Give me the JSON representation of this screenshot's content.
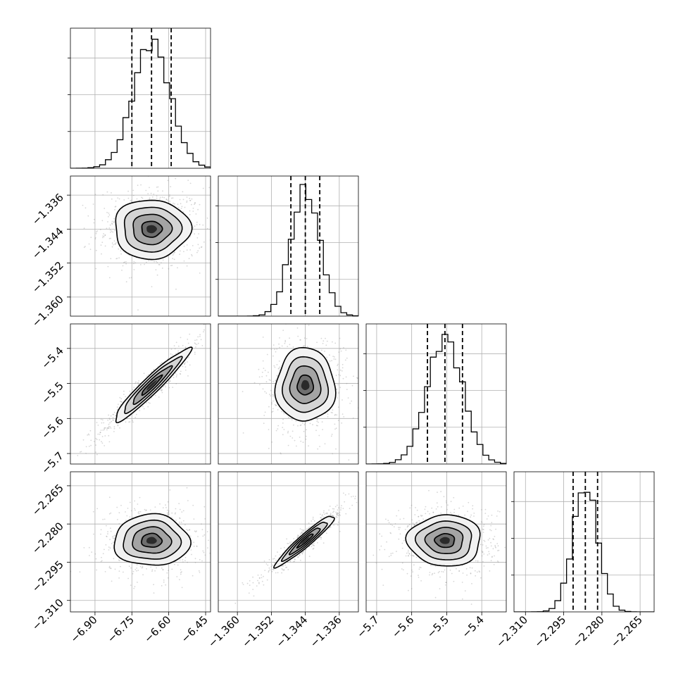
{
  "chart_data": {
    "type": "corner",
    "grid": true,
    "colors": {
      "marks": "#000000",
      "grid": "#b0b0b0",
      "points": "#8c8c8c",
      "background": "#ffffff"
    },
    "params": [
      {
        "range": [
          -7.0,
          -6.43
        ],
        "ticks": [
          -6.9,
          -6.75,
          -6.6,
          -6.45
        ],
        "tick_labels": [
          "−6.90",
          "−6.75",
          "−6.60",
          "−6.45"
        ],
        "mean": -6.67,
        "sigma": 0.075,
        "quantiles": [
          -6.75,
          -6.67,
          -6.59
        ]
      },
      {
        "range": [
          -1.3645,
          -1.3315
        ],
        "ticks": [
          -1.36,
          -1.352,
          -1.344,
          -1.336
        ],
        "tick_labels": [
          "−1.360",
          "−1.352",
          "−1.344",
          "−1.336"
        ],
        "mean": -1.344,
        "sigma": 0.0034,
        "quantiles": [
          -1.3474,
          -1.344,
          -1.3406
        ]
      },
      {
        "range": [
          -5.73,
          -5.33
        ],
        "ticks": [
          -5.7,
          -5.6,
          -5.5,
          -5.4
        ],
        "tick_labels": [
          "−5.7",
          "−5.6",
          "−5.5",
          "−5.4"
        ],
        "mean": -5.505,
        "sigma": 0.051,
        "quantiles": [
          -5.555,
          -5.505,
          -5.455
        ]
      },
      {
        "range": [
          -2.3145,
          -2.2595
        ],
        "ticks": [
          -2.31,
          -2.295,
          -2.28,
          -2.265
        ],
        "tick_labels": [
          "−2.310",
          "−2.295",
          "−2.280",
          "−2.265"
        ],
        "mean": -2.2865,
        "sigma": 0.0049,
        "quantiles": [
          -2.2913,
          -2.2865,
          -2.2817
        ]
      }
    ],
    "correlations": [
      {
        "pair": [
          0,
          1
        ],
        "rho": 0.0
      },
      {
        "pair": [
          0,
          2
        ],
        "rho": 0.95
      },
      {
        "pair": [
          1,
          2
        ],
        "rho": 0.0
      },
      {
        "pair": [
          0,
          3
        ],
        "rho": 0.0
      },
      {
        "pair": [
          1,
          3
        ],
        "rho": 0.95
      },
      {
        "pair": [
          2,
          3
        ],
        "rho": 0.0
      }
    ]
  }
}
